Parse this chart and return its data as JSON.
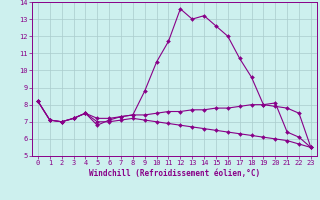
{
  "xlabel": "Windchill (Refroidissement éolien,°C)",
  "bg_color": "#cdf0ee",
  "line_color": "#880088",
  "grid_color": "#aacccc",
  "x_values": [
    0,
    1,
    2,
    3,
    4,
    5,
    6,
    7,
    8,
    9,
    10,
    11,
    12,
    13,
    14,
    15,
    16,
    17,
    18,
    19,
    20,
    21,
    22,
    23
  ],
  "line1_y": [
    8.2,
    7.1,
    7.0,
    7.2,
    7.5,
    6.8,
    7.1,
    7.3,
    7.4,
    8.8,
    10.5,
    11.7,
    13.6,
    13.0,
    13.2,
    12.6,
    12.0,
    10.7,
    9.6,
    8.0,
    8.1,
    6.4,
    6.1,
    5.5
  ],
  "line2_y": [
    8.2,
    7.1,
    7.0,
    7.2,
    7.5,
    7.2,
    7.2,
    7.3,
    7.4,
    7.4,
    7.5,
    7.6,
    7.6,
    7.7,
    7.7,
    7.8,
    7.8,
    7.9,
    8.0,
    8.0,
    7.9,
    7.8,
    7.5,
    5.5
  ],
  "line3_y": [
    8.2,
    7.1,
    7.0,
    7.2,
    7.5,
    7.0,
    7.0,
    7.1,
    7.2,
    7.1,
    7.0,
    6.9,
    6.8,
    6.7,
    6.6,
    6.5,
    6.4,
    6.3,
    6.2,
    6.1,
    6.0,
    5.9,
    5.7,
    5.5
  ],
  "ylim": [
    5,
    14
  ],
  "xlim": [
    -0.5,
    23.5
  ],
  "yticks": [
    5,
    6,
    7,
    8,
    9,
    10,
    11,
    12,
    13,
    14
  ],
  "xticks": [
    0,
    1,
    2,
    3,
    4,
    5,
    6,
    7,
    8,
    9,
    10,
    11,
    12,
    13,
    14,
    15,
    16,
    17,
    18,
    19,
    20,
    21,
    22,
    23
  ],
  "tick_fontsize": 5,
  "xlabel_fontsize": 5.5,
  "marker_size": 2.0,
  "linewidth": 0.8
}
